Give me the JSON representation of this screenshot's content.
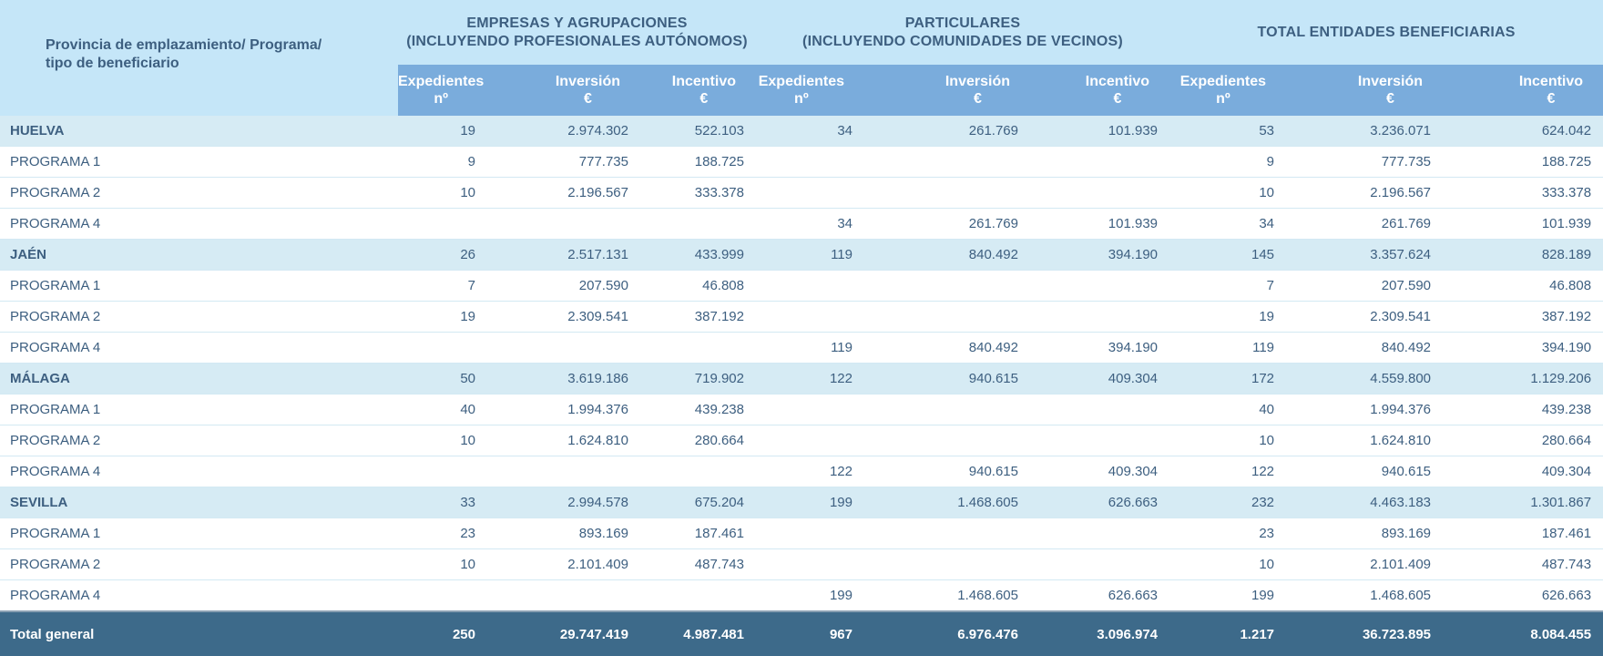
{
  "header": {
    "row_label": "Provincia de emplazamiento/ Programa/ tipo de beneficiario",
    "groups": [
      {
        "line1": "EMPRESAS Y AGRUPACIONES",
        "line2": "(INCLUYENDO PROFESIONALES AUTÓNOMOS)"
      },
      {
        "line1": "PARTICULARES",
        "line2": "(INCLUYENDO COMUNIDADES DE VECINOS)"
      },
      {
        "line1": "TOTAL ENTIDADES BENEFICIARIAS",
        "line2": ""
      }
    ],
    "subcols": [
      {
        "l1": "Expedientes",
        "l2": "nº"
      },
      {
        "l1": "Inversión",
        "l2": "€"
      },
      {
        "l1": "Incentivo",
        "l2": "€"
      }
    ]
  },
  "rows": [
    {
      "type": "prov",
      "label": "HUELVA",
      "v": [
        "19",
        "2.974.302",
        "522.103",
        "34",
        "261.769",
        "101.939",
        "53",
        "3.236.071",
        "624.042"
      ]
    },
    {
      "type": "prog",
      "label": "PROGRAMA 1",
      "v": [
        "9",
        "777.735",
        "188.725",
        "",
        "",
        "",
        "9",
        "777.735",
        "188.725"
      ]
    },
    {
      "type": "prog",
      "label": "PROGRAMA 2",
      "v": [
        "10",
        "2.196.567",
        "333.378",
        "",
        "",
        "",
        "10",
        "2.196.567",
        "333.378"
      ]
    },
    {
      "type": "prog",
      "label": "PROGRAMA 4",
      "v": [
        "",
        "",
        "",
        "34",
        "261.769",
        "101.939",
        "34",
        "261.769",
        "101.939"
      ]
    },
    {
      "type": "prov",
      "label": "JAÉN",
      "v": [
        "26",
        "2.517.131",
        "433.999",
        "119",
        "840.492",
        "394.190",
        "145",
        "3.357.624",
        "828.189"
      ]
    },
    {
      "type": "prog",
      "label": "PROGRAMA 1",
      "v": [
        "7",
        "207.590",
        "46.808",
        "",
        "",
        "",
        "7",
        "207.590",
        "46.808"
      ]
    },
    {
      "type": "prog",
      "label": "PROGRAMA 2",
      "v": [
        "19",
        "2.309.541",
        "387.192",
        "",
        "",
        "",
        "19",
        "2.309.541",
        "387.192"
      ]
    },
    {
      "type": "prog",
      "label": "PROGRAMA 4",
      "v": [
        "",
        "",
        "",
        "119",
        "840.492",
        "394.190",
        "119",
        "840.492",
        "394.190"
      ]
    },
    {
      "type": "prov",
      "label": "MÁLAGA",
      "v": [
        "50",
        "3.619.186",
        "719.902",
        "122",
        "940.615",
        "409.304",
        "172",
        "4.559.800",
        "1.129.206"
      ]
    },
    {
      "type": "prog",
      "label": "PROGRAMA 1",
      "v": [
        "40",
        "1.994.376",
        "439.238",
        "",
        "",
        "",
        "40",
        "1.994.376",
        "439.238"
      ]
    },
    {
      "type": "prog",
      "label": "PROGRAMA 2",
      "v": [
        "10",
        "1.624.810",
        "280.664",
        "",
        "",
        "",
        "10",
        "1.624.810",
        "280.664"
      ]
    },
    {
      "type": "prog",
      "label": "PROGRAMA 4",
      "v": [
        "",
        "",
        "",
        "122",
        "940.615",
        "409.304",
        "122",
        "940.615",
        "409.304"
      ]
    },
    {
      "type": "prov",
      "label": "SEVILLA",
      "v": [
        "33",
        "2.994.578",
        "675.204",
        "199",
        "1.468.605",
        "626.663",
        "232",
        "4.463.183",
        "1.301.867"
      ]
    },
    {
      "type": "prog",
      "label": "PROGRAMA 1",
      "v": [
        "23",
        "893.169",
        "187.461",
        "",
        "",
        "",
        "23",
        "893.169",
        "187.461"
      ]
    },
    {
      "type": "prog",
      "label": "PROGRAMA 2",
      "v": [
        "10",
        "2.101.409",
        "487.743",
        "",
        "",
        "",
        "10",
        "2.101.409",
        "487.743"
      ]
    },
    {
      "type": "prog",
      "label": "PROGRAMA 4",
      "v": [
        "",
        "",
        "",
        "199",
        "1.468.605",
        "626.663",
        "199",
        "1.468.605",
        "626.663"
      ]
    }
  ],
  "total": {
    "label": "Total general",
    "v": [
      "250",
      "29.747.419",
      "4.987.481",
      "967",
      "6.976.476",
      "3.096.974",
      "1.217",
      "36.723.895",
      "8.084.455"
    ]
  },
  "colors": {
    "header_bg": "#c5e6f8",
    "subheader_bg": "#7aacdc",
    "province_bg": "#d6ebf4",
    "total_bg": "#3d6a8a",
    "text": "#3d5f80"
  }
}
